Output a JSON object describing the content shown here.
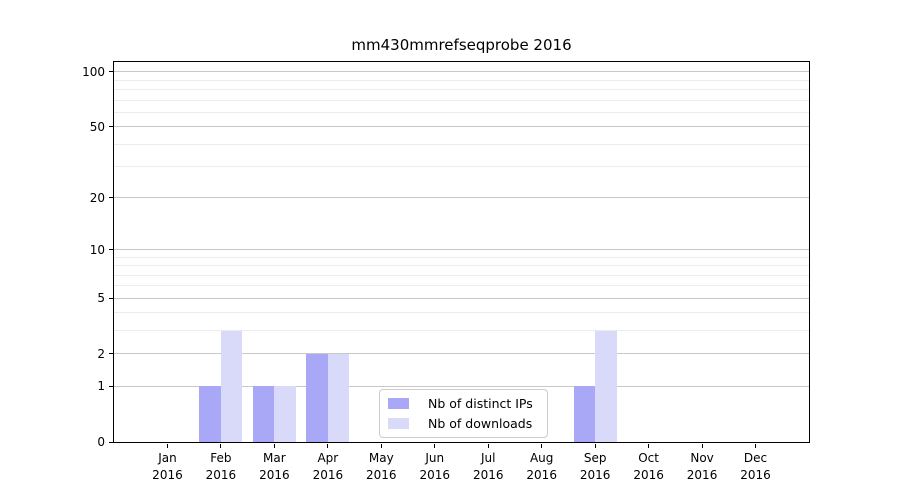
{
  "chart_data": {
    "type": "bar",
    "title": "mm430mmrefseqprobe 2016",
    "x_tick_labels": [
      {
        "month": "Jan",
        "year": "2016"
      },
      {
        "month": "Feb",
        "year": "2016"
      },
      {
        "month": "Mar",
        "year": "2016"
      },
      {
        "month": "Apr",
        "year": "2016"
      },
      {
        "month": "May",
        "year": "2016"
      },
      {
        "month": "Jun",
        "year": "2016"
      },
      {
        "month": "Jul",
        "year": "2016"
      },
      {
        "month": "Aug",
        "year": "2016"
      },
      {
        "month": "Sep",
        "year": "2016"
      },
      {
        "month": "Oct",
        "year": "2016"
      },
      {
        "month": "Nov",
        "year": "2016"
      },
      {
        "month": "Dec",
        "year": "2016"
      }
    ],
    "series": [
      {
        "name": "Nb of distinct IPs",
        "color": "#a8a8f6",
        "values": [
          0,
          1,
          1,
          2,
          0,
          0,
          0,
          0,
          1,
          0,
          0,
          0
        ]
      },
      {
        "name": "Nb of downloads",
        "color": "#d9d9fa",
        "values": [
          0,
          3,
          1,
          2,
          0,
          0,
          0,
          0,
          3,
          0,
          0,
          0
        ]
      }
    ],
    "y_axis": {
      "scale": "log1p",
      "tick_values": [
        0,
        1,
        2,
        5,
        10,
        20,
        50,
        100
      ],
      "tick_labels": [
        "0",
        "1",
        "2",
        "5",
        "10",
        "20",
        "50",
        "100"
      ],
      "minor_gridline_values": [
        3,
        4,
        6,
        7,
        8,
        9,
        30,
        40,
        60,
        70,
        80,
        90
      ],
      "ylim": [
        0,
        113
      ]
    },
    "legend": {
      "entries": [
        "Nb of distinct IPs",
        "Nb of downloads"
      ],
      "position": "inside lower-center"
    },
    "grid": true
  },
  "colors": {
    "background": "#ffffff",
    "axis": "#000000",
    "grid_major": "#c8c8c8",
    "grid_minor": "#ececec",
    "bar_distinct_ips": "#a8a8f6",
    "bar_downloads": "#d9d9fa",
    "legend_border": "#cccccc",
    "text": "#000000"
  }
}
